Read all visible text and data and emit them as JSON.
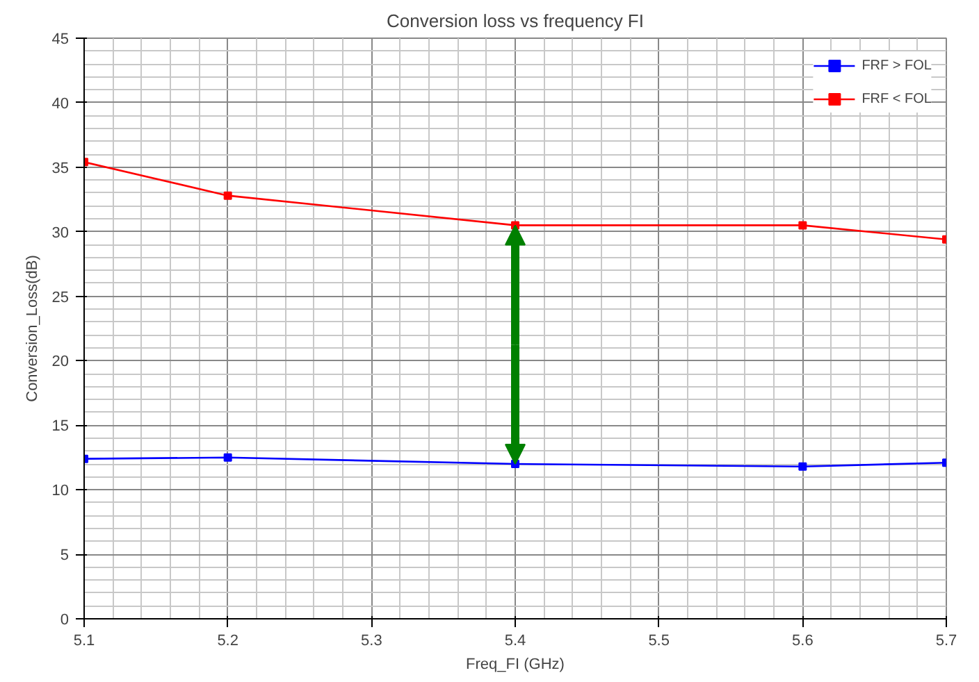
{
  "chart_data": {
    "type": "line",
    "title": "Conversion loss vs frequency FI",
    "xlabel": "Freq_FI (GHz)",
    "ylabel": "Conversion_Loss(dB)",
    "x": [
      5.1,
      5.2,
      5.4,
      5.6,
      5.7
    ],
    "series": [
      {
        "name": "FRF > FOL",
        "color": "#0000ff",
        "values": [
          12.4,
          12.5,
          12.0,
          11.8,
          12.1
        ]
      },
      {
        "name": "FRF < FOL",
        "color": "#ff0000",
        "values": [
          35.4,
          32.8,
          30.5,
          30.5,
          29.4
        ]
      }
    ],
    "xlim": [
      5.1,
      5.7
    ],
    "xticks": [
      5.1,
      5.2,
      5.3,
      5.4,
      5.5,
      5.6,
      5.7
    ],
    "ylim": [
      0,
      45
    ],
    "yticks": [
      0,
      5,
      10,
      15,
      20,
      25,
      30,
      35,
      40,
      45
    ],
    "grid": true,
    "legend": "top right",
    "marker": "square",
    "line_style": "solid"
  }
}
